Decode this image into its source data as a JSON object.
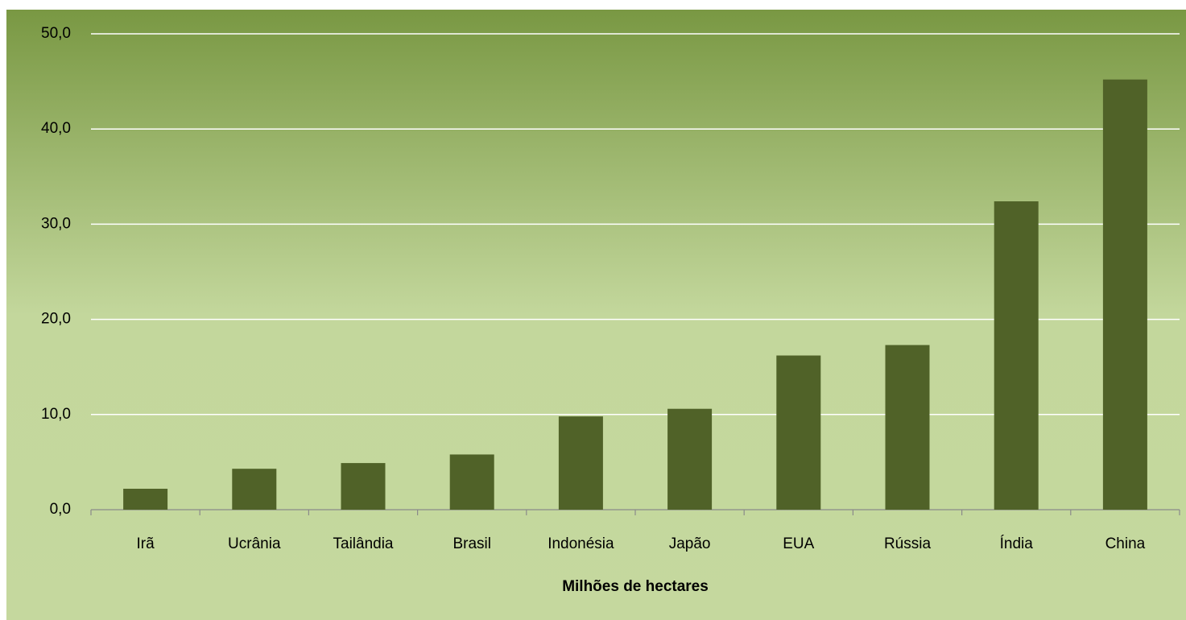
{
  "chart_data": {
    "type": "bar",
    "x_label": "Milhões de hectares",
    "categories": [
      "Irã",
      "Ucrânia",
      "Tailândia",
      "Brasil",
      "Indonésia",
      "Japão",
      "EUA",
      "Rússia",
      "Índia",
      "China"
    ],
    "values": [
      2.2,
      4.3,
      4.9,
      5.8,
      9.8,
      10.6,
      16.2,
      17.3,
      32.4,
      45.2
    ],
    "color": "#506228",
    "ylim": [
      0,
      50
    ],
    "yticks": [
      {
        "value": 0,
        "label": "0,0"
      },
      {
        "value": 10,
        "label": "10,0"
      },
      {
        "value": 20,
        "label": "20,0"
      },
      {
        "value": 30,
        "label": "30,0"
      },
      {
        "value": 40,
        "label": "40,0"
      },
      {
        "value": 50,
        "label": "50,0"
      }
    ],
    "grid": true
  }
}
